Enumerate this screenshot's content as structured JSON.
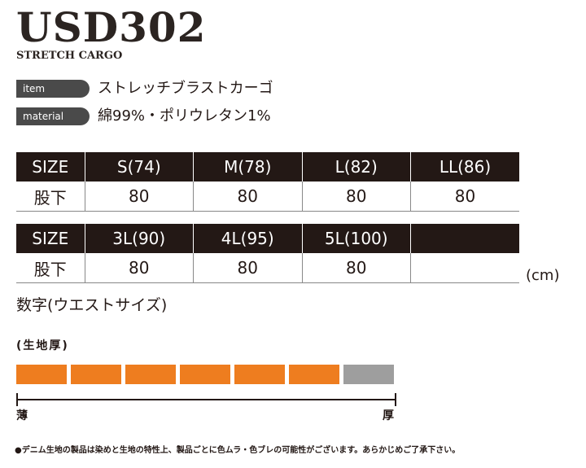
{
  "model": "USD302",
  "subtitle": "STRETCH CARGO",
  "specs": [
    {
      "label": "item",
      "value": "ストレッチブラストカーゴ"
    },
    {
      "label": "material",
      "value": "綿99%・ポリウレタン1%"
    }
  ],
  "size_tables": [
    {
      "header": [
        "SIZE",
        "S(74)",
        "M(78)",
        "L(82)",
        "LL(86)"
      ],
      "row": [
        "股下",
        "80",
        "80",
        "80",
        "80"
      ]
    },
    {
      "header": [
        "SIZE",
        "3L(90)",
        "4L(95)",
        "5L(100)",
        ""
      ],
      "row": [
        "股下",
        "80",
        "80",
        "80",
        ""
      ]
    }
  ],
  "unit": "(cm)",
  "size_note": "数字(ウエストサイズ)",
  "thickness": {
    "label": "(生地厚)",
    "segments_total": 7,
    "segments_filled": 6,
    "fill_color": "#ee7d1f",
    "empty_color": "#9e9e9e",
    "min_label": "薄",
    "max_label": "厚"
  },
  "footnote": "●デニム生地の製品は染めと生地の特性上、製品ごとに色ムラ・色ブレの可能性がございます。あらかじめご了承下さい。"
}
